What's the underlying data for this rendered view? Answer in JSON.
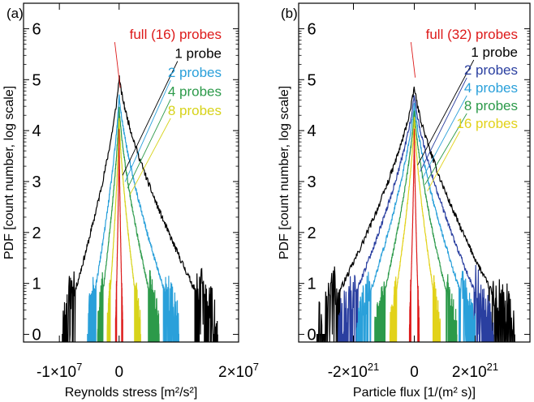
{
  "figure": {
    "background": "#ffffff"
  },
  "chart_data": [
    {
      "type": "line",
      "panel_label": "(a)",
      "xlabel": "Reynolds stress [m²/s²]",
      "ylabel": "PDF [count number, log scale]",
      "y_scale": "log10 counts",
      "ylim": [
        -0.15,
        6.5
      ],
      "xlim": [
        -16000000,
        20000000
      ],
      "y_ticks": [
        "0",
        "1",
        "2",
        "3",
        "4",
        "5",
        "6"
      ],
      "x_ticks": [
        {
          "value": -10000000,
          "label": "-1×10",
          "exp": "7"
        },
        {
          "value": 0,
          "label": "0",
          "exp": ""
        },
        {
          "value": 20000000,
          "label": "2×10",
          "exp": "7"
        }
      ],
      "series": [
        {
          "name": "full (16) probes",
          "color": "#dd1a1a",
          "peak": 4.05,
          "half_width_neg": 600000,
          "half_width_pos": 600000,
          "noise": 0.15
        },
        {
          "name": "1 probe",
          "color": "#000000",
          "peak": 5.1,
          "half_width_neg": 9500000,
          "half_width_pos": 16500000,
          "noise": 0.35
        },
        {
          "name": "2 probes",
          "color": "#2aa0da",
          "peak": 4.75,
          "half_width_neg": 5300000,
          "half_width_pos": 10000000,
          "noise": 0.3
        },
        {
          "name": "4 probes",
          "color": "#2c9a4a",
          "peak": 4.5,
          "half_width_neg": 3600000,
          "half_width_pos": 6700000,
          "noise": 0.25
        },
        {
          "name": "8 probes",
          "color": "#d7d31a",
          "peak": 4.3,
          "half_width_neg": 2000000,
          "half_width_pos": 3600000,
          "noise": 0.2
        }
      ],
      "legend_placement": "top-right",
      "grid": false
    },
    {
      "type": "line",
      "panel_label": "(b)",
      "xlabel": "Particle flux [1/(m² s)]",
      "ylabel": "PDF [count number, log scale]",
      "y_scale": "log10 counts",
      "ylim": [
        -0.15,
        6.5
      ],
      "xlim": [
        -3.8e+21,
        3.8e+21
      ],
      "y_ticks": [
        "0",
        "1",
        "2",
        "3",
        "4",
        "5",
        "6"
      ],
      "x_ticks": [
        {
          "value": -2e+21,
          "label": "-2×10",
          "exp": "21"
        },
        {
          "value": 0,
          "label": "0",
          "exp": ""
        },
        {
          "value": 2e+21,
          "label": "2×10",
          "exp": "21"
        }
      ],
      "series": [
        {
          "name": "full (32) probes",
          "color": "#dd1a1a",
          "peak": 4.05,
          "half_width_neg": 1.6e+20,
          "half_width_pos": 1.6e+20,
          "noise": 0.15
        },
        {
          "name": "1 probe",
          "color": "#000000",
          "peak": 4.9,
          "half_width_neg": 3.2e+21,
          "half_width_pos": 3.3e+21,
          "noise": 0.35
        },
        {
          "name": "2 probes",
          "color": "#2a3fa0",
          "peak": 4.75,
          "half_width_neg": 2.5e+21,
          "half_width_pos": 2.6e+21,
          "noise": 0.3
        },
        {
          "name": "4 probes",
          "color": "#2aa0da",
          "peak": 4.6,
          "half_width_neg": 1.9e+21,
          "half_width_pos": 2e+21,
          "noise": 0.28
        },
        {
          "name": "8 probes",
          "color": "#2c9a4a",
          "peak": 4.45,
          "half_width_neg": 1.3e+21,
          "half_width_pos": 1.4e+21,
          "noise": 0.24
        },
        {
          "name": "16 probes",
          "color": "#e2d21a",
          "peak": 4.3,
          "half_width_neg": 8e+20,
          "half_width_pos": 8.5e+20,
          "noise": 0.2
        }
      ],
      "legend_placement": "top-right",
      "grid": false
    }
  ]
}
